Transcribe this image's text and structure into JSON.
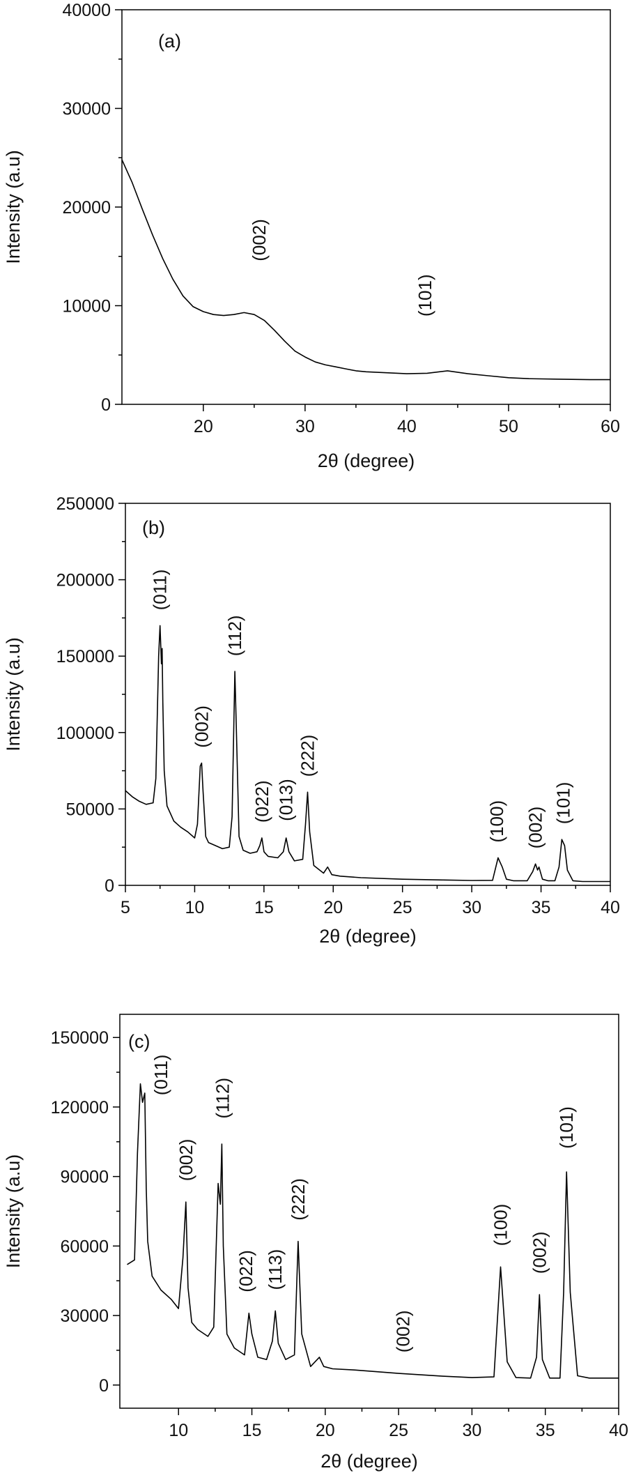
{
  "chart_data": [
    {
      "type": "line",
      "panel_label": "(a)",
      "xlabel": "2θ (degree)",
      "ylabel": "Intensity (a.u)",
      "xlim": [
        12,
        60
      ],
      "ylim": [
        0,
        40000
      ],
      "xticks": [
        20,
        30,
        40,
        50,
        60
      ],
      "yticks": [
        0,
        10000,
        20000,
        30000,
        40000
      ],
      "series": [
        {
          "x": [
            12,
            13,
            14,
            15,
            16,
            17,
            18,
            19,
            20,
            21,
            22,
            23,
            24,
            25,
            26,
            27,
            28,
            29,
            30,
            31,
            32,
            33,
            34,
            35,
            36,
            38,
            40,
            42,
            44,
            46,
            48,
            50,
            52,
            55,
            58,
            60
          ],
          "y": [
            24800,
            22500,
            19800,
            17200,
            14800,
            12700,
            11000,
            9900,
            9400,
            9100,
            9000,
            9100,
            9300,
            9100,
            8500,
            7500,
            6400,
            5400,
            4800,
            4300,
            4000,
            3800,
            3600,
            3400,
            3300,
            3200,
            3100,
            3150,
            3400,
            3100,
            2900,
            2700,
            2600,
            2550,
            2500,
            2500
          ]
        }
      ],
      "annotations": [
        {
          "text": "(002)",
          "x": 25.5,
          "y": 14500
        },
        {
          "text": "(101)",
          "x": 41.8,
          "y": 8900
        }
      ]
    },
    {
      "type": "line",
      "panel_label": "(b)",
      "xlabel": "2θ (degree)",
      "ylabel": "Intensity (a.u)",
      "xlim": [
        5,
        40
      ],
      "ylim": [
        0,
        250000
      ],
      "xticks": [
        5,
        10,
        15,
        20,
        25,
        30,
        35,
        40
      ],
      "yticks": [
        0,
        50000,
        100000,
        150000,
        200000,
        250000
      ],
      "series": [
        {
          "x": [
            5,
            5.5,
            6,
            6.5,
            7,
            7.2,
            7.4,
            7.5,
            7.6,
            7.65,
            7.7,
            7.8,
            8,
            8.5,
            9,
            9.5,
            10,
            10.2,
            10.4,
            10.5,
            10.6,
            10.8,
            11,
            11.5,
            12,
            12.5,
            12.7,
            12.9,
            13.0,
            13.2,
            13.5,
            14,
            14.5,
            14.7,
            14.85,
            15.0,
            15.3,
            16,
            16.4,
            16.6,
            16.8,
            17.2,
            17.8,
            18.0,
            18.15,
            18.3,
            18.6,
            19.3,
            19.6,
            19.9,
            20.5,
            22,
            25,
            28,
            30,
            31.5,
            31.9,
            32.0,
            32.2,
            32.5,
            33,
            34,
            34.4,
            34.6,
            34.75,
            34.85,
            35.1,
            35.5,
            36,
            36.3,
            36.5,
            36.7,
            36.9,
            37.3,
            38,
            40
          ],
          "y": [
            62000,
            58000,
            55000,
            53000,
            54000,
            70000,
            150000,
            170000,
            145000,
            155000,
            120000,
            75000,
            52000,
            42000,
            38000,
            35000,
            31000,
            40000,
            78000,
            80000,
            62000,
            32000,
            28000,
            26000,
            24000,
            25000,
            45000,
            140000,
            105000,
            32000,
            23000,
            21000,
            22000,
            26000,
            31000,
            22000,
            19000,
            18000,
            22000,
            31000,
            22000,
            16000,
            17000,
            40000,
            61000,
            35000,
            13000,
            8000,
            12000,
            7000,
            6000,
            5000,
            4000,
            3500,
            3200,
            3300,
            18000,
            16000,
            12000,
            4000,
            3000,
            3000,
            9000,
            14000,
            10000,
            12000,
            4000,
            3000,
            3000,
            12000,
            30000,
            26000,
            10000,
            3000,
            2500,
            2500
          ]
        }
      ],
      "annotations": [
        {
          "text": "(011)",
          "x": 7.5,
          "y": 180000
        },
        {
          "text": "(002)",
          "x": 10.5,
          "y": 90000
        },
        {
          "text": "(112)",
          "x": 12.9,
          "y": 150000
        },
        {
          "text": "(022)",
          "x": 14.85,
          "y": 41000
        },
        {
          "text": "(013)",
          "x": 16.6,
          "y": 42000
        },
        {
          "text": "(222)",
          "x": 18.15,
          "y": 71000
        },
        {
          "text": "(100)",
          "x": 31.8,
          "y": 28000
        },
        {
          "text": "(002)",
          "x": 34.6,
          "y": 24000
        },
        {
          "text": "(101)",
          "x": 36.6,
          "y": 40000
        }
      ]
    },
    {
      "type": "line",
      "panel_label": "(c)",
      "xlabel": "2θ (degree)",
      "ylabel": "Intensity (a.u)",
      "xlim": [
        6,
        40
      ],
      "ylim": [
        -10000,
        160000
      ],
      "xticks": [
        10,
        15,
        20,
        25,
        30,
        35,
        40
      ],
      "yticks": [
        0,
        30000,
        60000,
        90000,
        120000,
        150000
      ],
      "series": [
        {
          "x": [
            6.5,
            7,
            7.2,
            7.4,
            7.55,
            7.7,
            7.8,
            7.9,
            8.2,
            8.8,
            9.5,
            10.0,
            10.3,
            10.5,
            10.65,
            10.9,
            11.3,
            12,
            12.4,
            12.7,
            12.85,
            12.95,
            13.05,
            13.3,
            13.8,
            14.5,
            14.8,
            15.0,
            15.4,
            16,
            16.4,
            16.6,
            16.8,
            17.3,
            17.9,
            18.15,
            18.4,
            19.0,
            19.6,
            19.9,
            20.5,
            22,
            25,
            28,
            30,
            31.5,
            31.95,
            32.4,
            33,
            34,
            34.4,
            34.6,
            34.8,
            35.3,
            36,
            36.25,
            36.45,
            36.7,
            37.2,
            38,
            40
          ],
          "y": [
            52000,
            54000,
            100000,
            130000,
            122000,
            126000,
            85000,
            62000,
            47000,
            41000,
            37000,
            33000,
            55000,
            79000,
            42000,
            27000,
            24000,
            21000,
            25000,
            87000,
            78000,
            104000,
            60000,
            22000,
            16000,
            13000,
            31000,
            22000,
            12000,
            11000,
            19000,
            32000,
            18000,
            11000,
            13000,
            62000,
            22000,
            8000,
            12000,
            8000,
            7000,
            6500,
            5000,
            3800,
            3200,
            3500,
            51000,
            10000,
            3200,
            3000,
            12000,
            39000,
            11000,
            3000,
            3000,
            40000,
            92000,
            40000,
            4000,
            3000,
            3000
          ]
        }
      ],
      "annotations": [
        {
          "text": "(011)",
          "x": 8.8,
          "y": 125000
        },
        {
          "text": "(002)",
          "x": 10.5,
          "y": 88000
        },
        {
          "text": "(112)",
          "x": 13.0,
          "y": 115000
        },
        {
          "text": "(022)",
          "x": 14.6,
          "y": 40000
        },
        {
          "text": "(113)",
          "x": 16.6,
          "y": 41000
        },
        {
          "text": "(222)",
          "x": 18.15,
          "y": 71000
        },
        {
          "text": "(002)",
          "x": 25.3,
          "y": 14000
        },
        {
          "text": "(100)",
          "x": 31.95,
          "y": 60000
        },
        {
          "text": "(002)",
          "x": 34.6,
          "y": 48000
        },
        {
          "text": "(101)",
          "x": 36.45,
          "y": 102000
        }
      ]
    }
  ]
}
